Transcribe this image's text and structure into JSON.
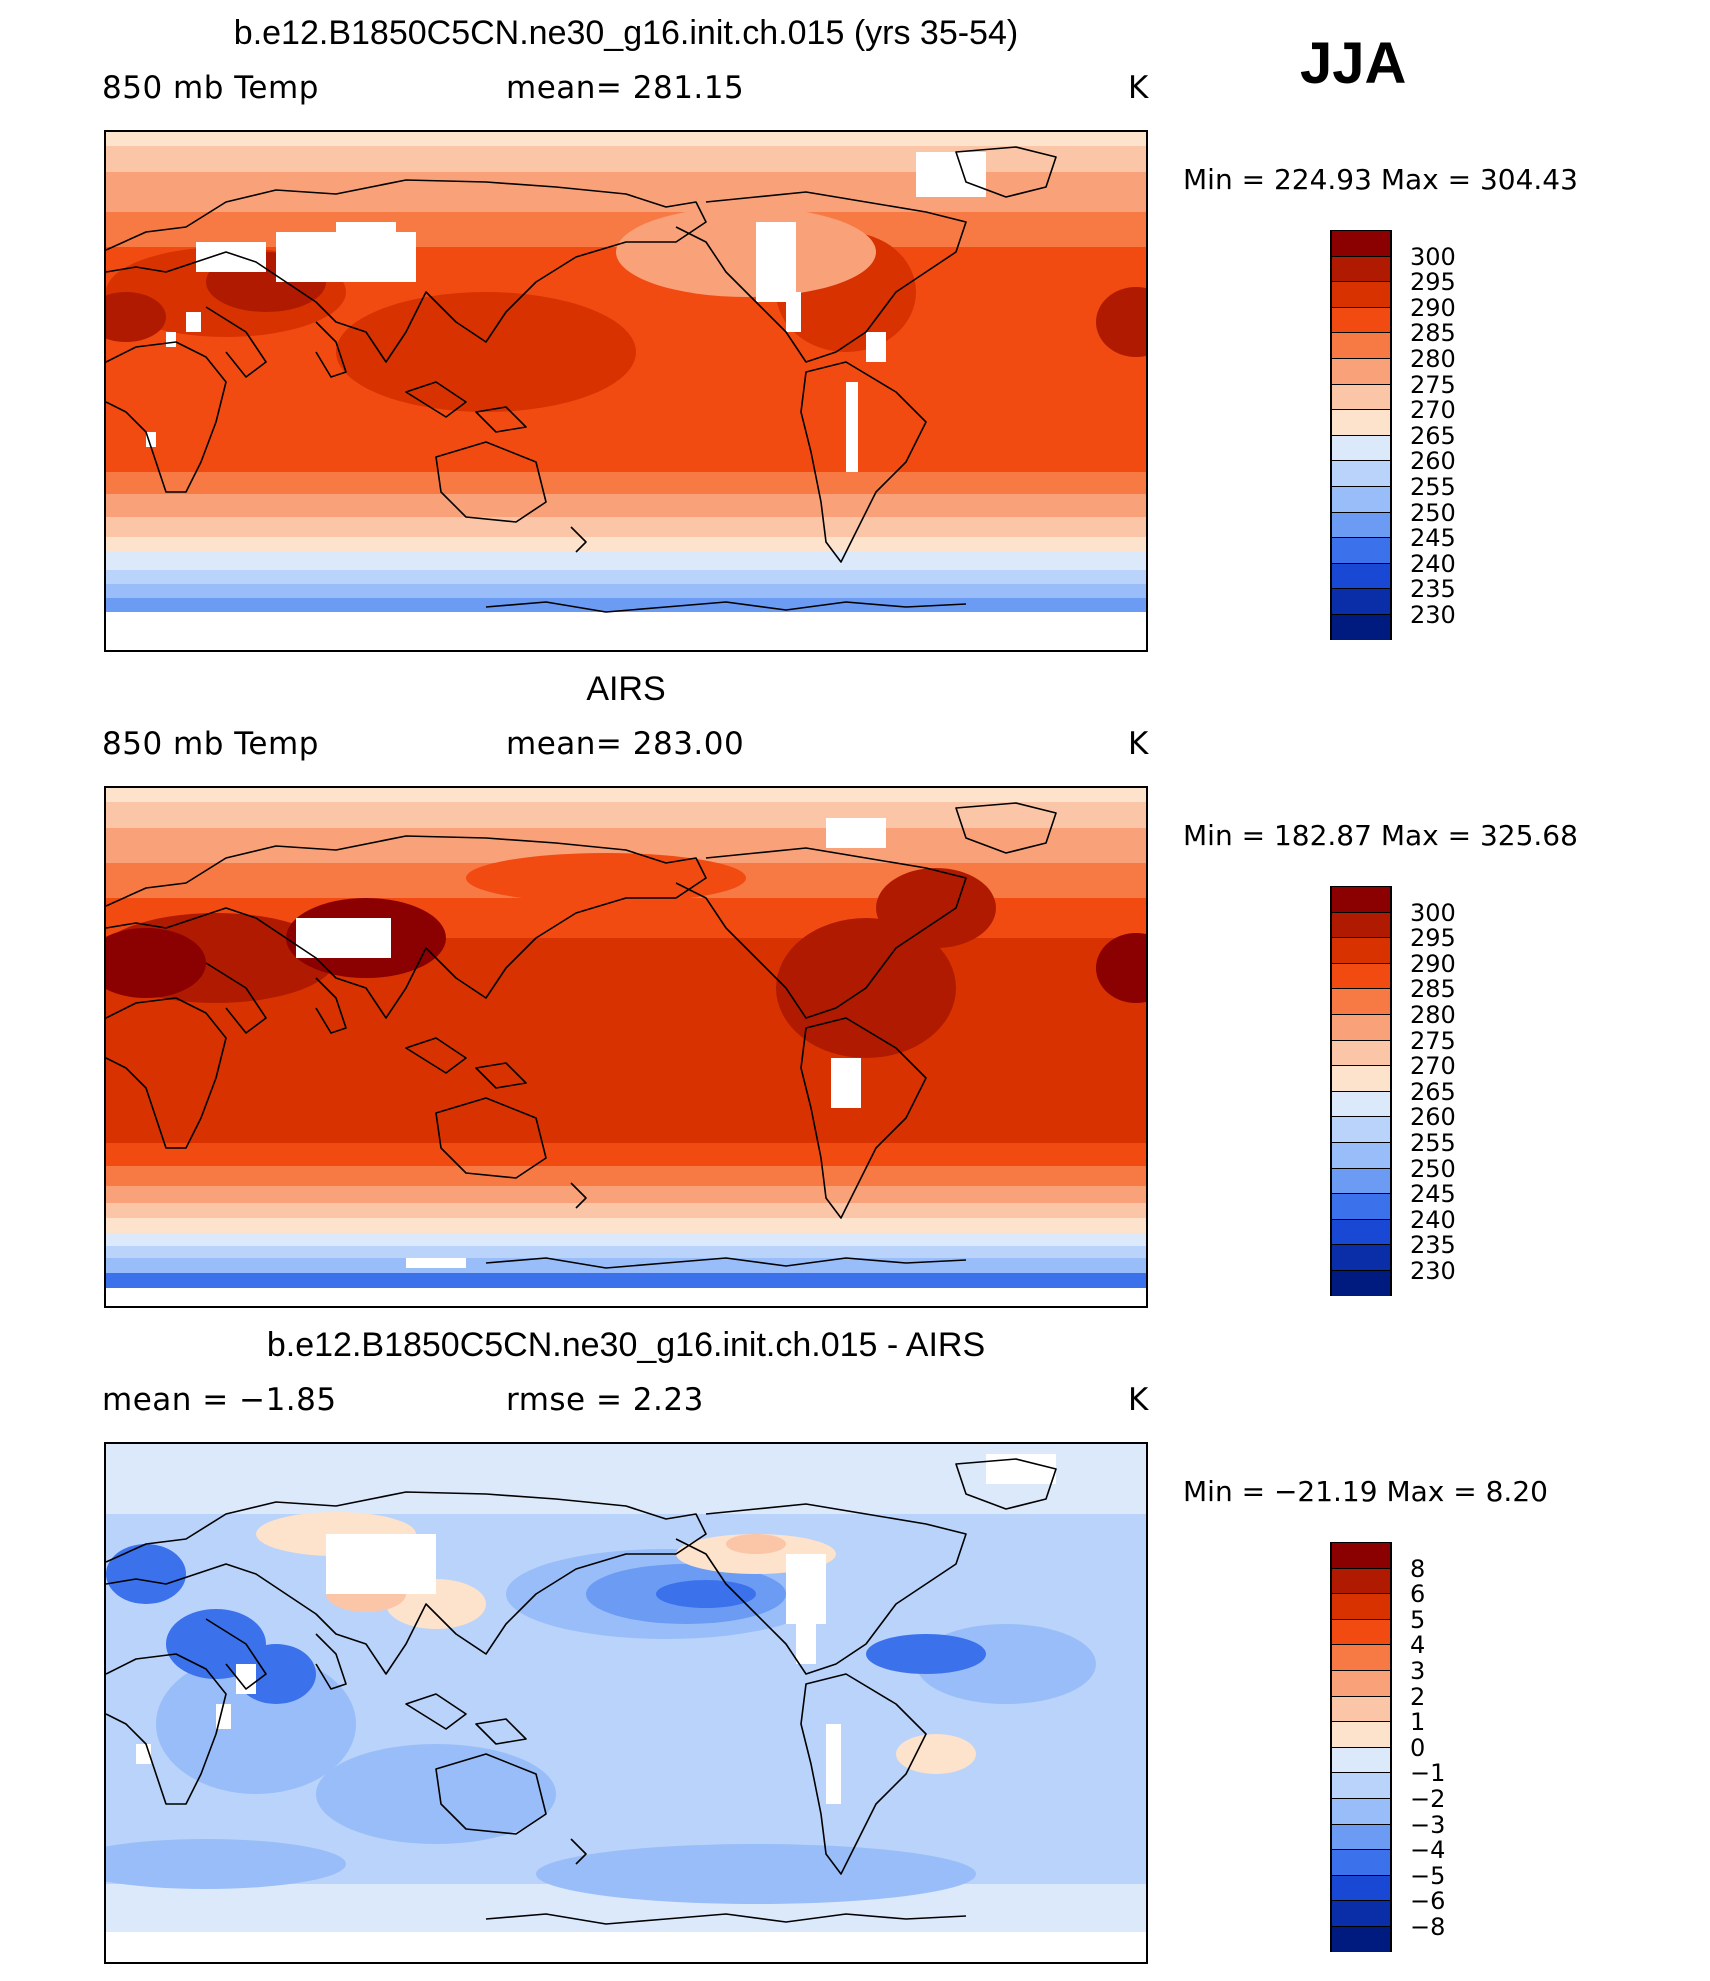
{
  "figure": {
    "season": "JJA"
  },
  "panels": [
    {
      "id": "model",
      "title": "b.e12.B1850C5CN.ne30_g16.init.ch.015 (yrs 35-54)",
      "left_label": "850 mb Temp",
      "mid_label": "mean=  281.15",
      "units": "K",
      "minmax": "Min  =  224.93  Max  =  304.43",
      "colorbar": {
        "labels": [
          "300",
          "295",
          "290",
          "285",
          "280",
          "275",
          "270",
          "265",
          "260",
          "255",
          "250",
          "245",
          "240",
          "235",
          "230"
        ],
        "colors": [
          "#8b0000",
          "#b01a00",
          "#d83200",
          "#f24b12",
          "#f77a45",
          "#f9a27a",
          "#fbc5a8",
          "#fde2cc",
          "#dbe9fb",
          "#b9d3fa",
          "#98bdf8",
          "#6b9bf3",
          "#3b72ec",
          "#1848d4",
          "#0a2ea8",
          "#001b80"
        ]
      }
    },
    {
      "id": "obs",
      "title": "AIRS",
      "left_label": "850 mb Temp",
      "mid_label": "mean=  283.00",
      "units": "K",
      "minmax": "Min  =  182.87  Max  =  325.68",
      "colorbar": {
        "labels": [
          "300",
          "295",
          "290",
          "285",
          "280",
          "275",
          "270",
          "265",
          "260",
          "255",
          "250",
          "245",
          "240",
          "235",
          "230"
        ],
        "colors": [
          "#8b0000",
          "#b01a00",
          "#d83200",
          "#f24b12",
          "#f77a45",
          "#f9a27a",
          "#fbc5a8",
          "#fde2cc",
          "#dbe9fb",
          "#b9d3fa",
          "#98bdf8",
          "#6b9bf3",
          "#3b72ec",
          "#1848d4",
          "#0a2ea8",
          "#001b80"
        ]
      }
    },
    {
      "id": "diff",
      "title": "b.e12.B1850C5CN.ne30_g16.init.ch.015 - AIRS",
      "left_label": "mean =    −1.85",
      "mid_label": "rmse =      2.23",
      "units": "K",
      "minmax": "Min  =  −21.19  Max  =     8.20",
      "colorbar": {
        "labels": [
          "8",
          "6",
          "5",
          "4",
          "3",
          "2",
          "1",
          "0",
          "−1",
          "−2",
          "−3",
          "−4",
          "−5",
          "−6",
          "−8"
        ],
        "colors": [
          "#8b0000",
          "#b01a00",
          "#d83200",
          "#f24b12",
          "#f77a45",
          "#f9a27a",
          "#fbc5a8",
          "#fde2cc",
          "#dbe9fb",
          "#b9d3fa",
          "#98bdf8",
          "#6b9bf3",
          "#3b72ec",
          "#1848d4",
          "#0a2ea8",
          "#001b80"
        ]
      }
    }
  ]
}
